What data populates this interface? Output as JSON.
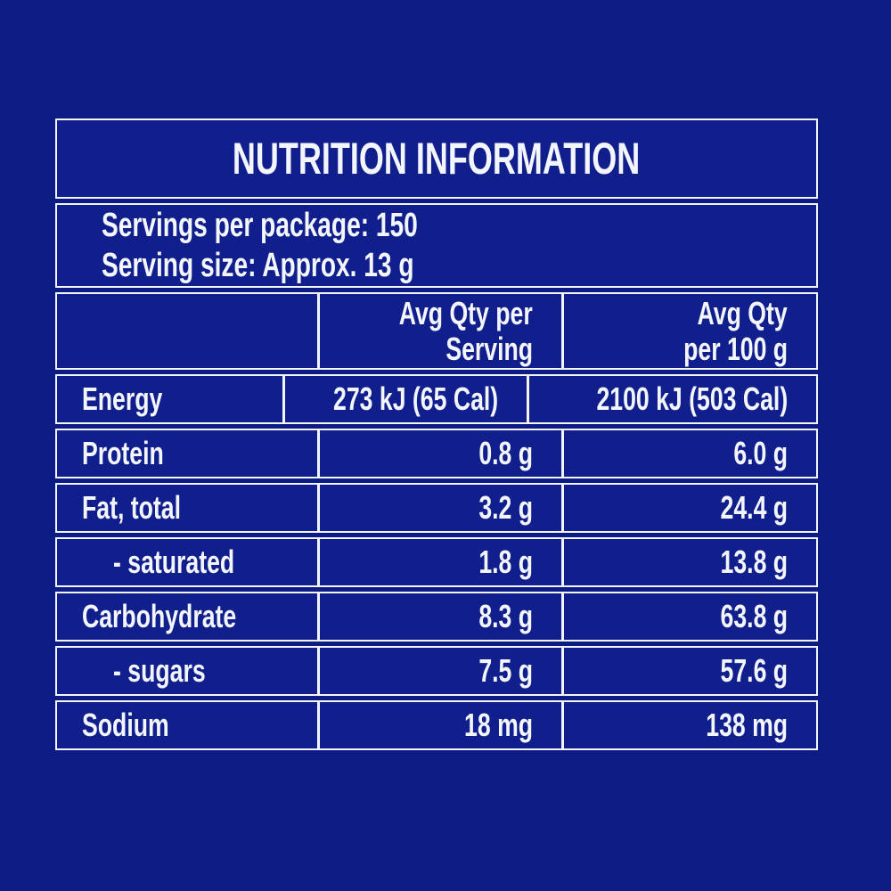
{
  "title": "NUTRITION INFORMATION",
  "servings": {
    "per_package": "Servings per package: 150",
    "size": "Serving size: Approx. 13 g"
  },
  "table": {
    "header": {
      "per_serving": {
        "line1": "Avg Qty per",
        "line2": "Serving"
      },
      "per_100g": {
        "line1": "Avg Qty",
        "line2": "per 100 g"
      }
    },
    "rows": [
      {
        "label": "Energy",
        "per_serving": "273 kJ (65 Cal)",
        "per_100g": "2100 kJ (503 Cal)",
        "indent": false
      },
      {
        "label": "Protein",
        "per_serving": "0.8 g",
        "per_100g": "6.0 g",
        "indent": false
      },
      {
        "label": "Fat, total",
        "per_serving": "3.2 g",
        "per_100g": "24.4 g",
        "indent": false
      },
      {
        "label": "- saturated",
        "per_serving": "1.8 g",
        "per_100g": "13.8 g",
        "indent": true
      },
      {
        "label": "Carbohydrate",
        "per_serving": "8.3 g",
        "per_100g": "63.8 g",
        "indent": false
      },
      {
        "label": "- sugars",
        "per_serving": "7.5 g",
        "per_100g": "57.6 g",
        "indent": true
      },
      {
        "label": "Sodium",
        "per_serving": "18 mg",
        "per_100g": "138 mg",
        "indent": false
      }
    ]
  },
  "colors": {
    "page_background": "#0d1c85",
    "panel_background": "#101f8c",
    "border": "#f3f5fc",
    "text": "#f4f6ff"
  }
}
